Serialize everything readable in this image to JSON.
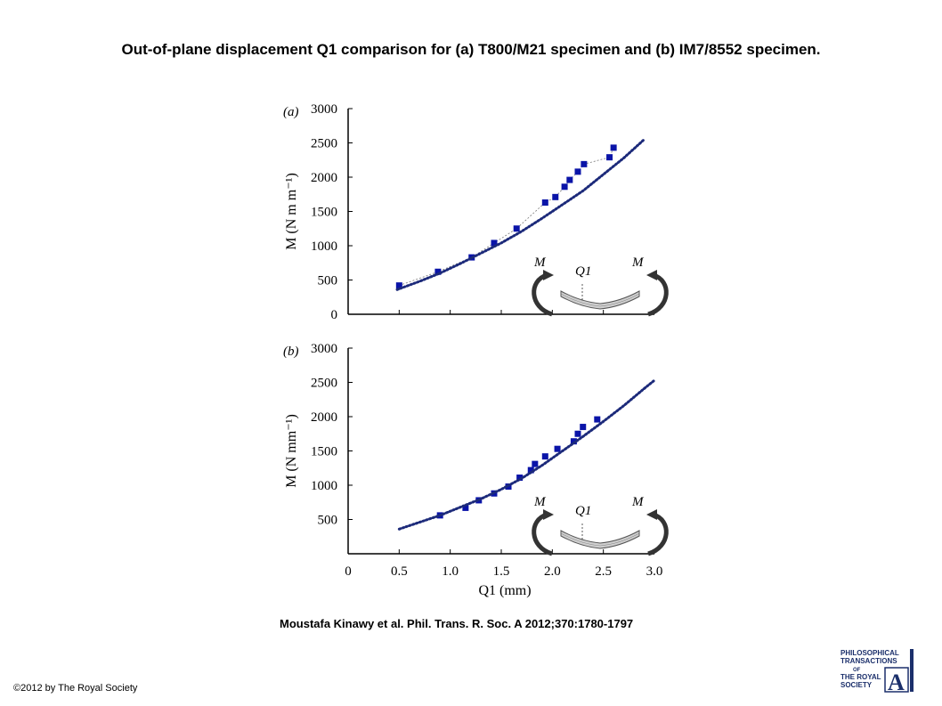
{
  "page": {
    "title": "Out-of-plane displacement Q1 comparison for (a) T800/M21 specimen and (b) IM7/8552 specimen.",
    "citation": "Moustafa Kinawy et al. Phil. Trans. R. Soc. A 2012;370:1780-1797",
    "copyright": "©2012 by The Royal Society",
    "logo": {
      "lines": [
        "PHILOSOPHICAL",
        "TRANSACTIONS",
        "OF",
        "THE ROYAL",
        "SOCIETY"
      ],
      "letter": "A"
    }
  },
  "colors": {
    "marker": "#0a14a8",
    "curve": "#000000",
    "axis": "#000000"
  },
  "chart_data": [
    {
      "type": "scatter",
      "panel_label": "(a)",
      "ylabel": "M (N m m⁻¹)",
      "xlim": [
        0,
        3.0
      ],
      "ylim": [
        0,
        3000
      ],
      "yticks": [
        0,
        500,
        1000,
        1500,
        2000,
        2500,
        3000
      ],
      "grid": false,
      "series": [
        {
          "style": "markers",
          "x": [
            0.5,
            0.88,
            1.21,
            1.43,
            1.65,
            1.93,
            2.03,
            2.12,
            2.17,
            2.25,
            2.31,
            2.56,
            2.6
          ],
          "y": [
            420,
            620,
            830,
            1040,
            1250,
            1630,
            1710,
            1860,
            1960,
            2080,
            2190,
            2290,
            2430
          ]
        },
        {
          "style": "dotted-curve",
          "x": [
            0.48,
            0.7,
            0.9,
            1.1,
            1.3,
            1.5,
            1.7,
            1.9,
            2.1,
            2.3,
            2.5,
            2.7,
            2.9
          ],
          "y": [
            360,
            480,
            600,
            740,
            890,
            1040,
            1210,
            1400,
            1600,
            1800,
            2040,
            2280,
            2550
          ]
        }
      ],
      "inset": {
        "labels": [
          "M",
          "Q1",
          "M"
        ]
      }
    },
    {
      "type": "scatter",
      "panel_label": "(b)",
      "xlabel": "Q1 (mm)",
      "ylabel": "M (N mm⁻¹)",
      "xlim": [
        0,
        3.0
      ],
      "ylim": [
        0,
        3000
      ],
      "yticks": [
        500,
        1000,
        1500,
        2000,
        2500,
        3000
      ],
      "xticks": [
        0,
        0.5,
        1.0,
        1.5,
        2.0,
        2.5,
        3.0
      ],
      "xtick_labels": [
        "0",
        "0.5",
        "1.0",
        "1.5",
        "2.0",
        "2.5",
        "3.0"
      ],
      "grid": false,
      "series": [
        {
          "style": "markers",
          "x": [
            0.9,
            1.15,
            1.28,
            1.43,
            1.57,
            1.68,
            1.79,
            1.83,
            1.93,
            2.05,
            2.21,
            2.25,
            2.3,
            2.44
          ],
          "y": [
            560,
            670,
            780,
            880,
            980,
            1110,
            1220,
            1310,
            1420,
            1530,
            1640,
            1750,
            1850,
            1960
          ]
        },
        {
          "style": "dotted-curve",
          "x": [
            0.5,
            0.7,
            0.9,
            1.1,
            1.3,
            1.5,
            1.7,
            1.9,
            2.1,
            2.3,
            2.5,
            2.7,
            2.9,
            3.0
          ],
          "y": [
            360,
            460,
            560,
            680,
            800,
            940,
            1100,
            1290,
            1500,
            1710,
            1930,
            2160,
            2410,
            2530
          ]
        }
      ],
      "inset": {
        "labels": [
          "M",
          "Q1",
          "M"
        ]
      }
    }
  ]
}
